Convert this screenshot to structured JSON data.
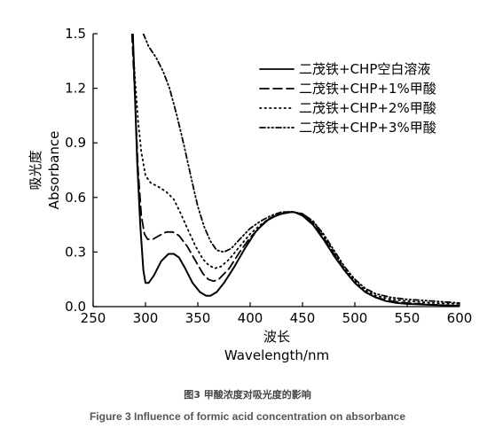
{
  "figure": {
    "caption_cn": "图3 甲酸浓度对吸光度的影响",
    "caption_en": "Figure 3 Influence of formic acid concentration on absorbance"
  },
  "chart_data": {
    "type": "line",
    "xlabel_cn": "波长",
    "xlabel": "Wavelength/nm",
    "ylabel_cn": "吸光度",
    "ylabel": "Absorbance",
    "xlim": [
      250,
      600
    ],
    "ylim": [
      0.0,
      1.5
    ],
    "xticks": [
      250,
      300,
      350,
      400,
      450,
      500,
      550,
      600
    ],
    "yticks": [
      0.0,
      0.3,
      0.6,
      0.9,
      1.2,
      1.5
    ],
    "ytick_labels": [
      "0.0",
      "0.3",
      "0.6",
      "0.9",
      "1.2",
      "1.5"
    ],
    "legend_position": "top-right",
    "series": [
      {
        "name": "二茂铁+CHP空白溶液",
        "style": "solid",
        "points": [
          [
            288,
            1.5
          ],
          [
            290,
            1.15
          ],
          [
            292,
            0.8
          ],
          [
            295,
            0.45
          ],
          [
            298,
            0.2
          ],
          [
            300,
            0.13
          ],
          [
            303,
            0.13
          ],
          [
            308,
            0.17
          ],
          [
            315,
            0.25
          ],
          [
            322,
            0.29
          ],
          [
            327,
            0.29
          ],
          [
            332,
            0.27
          ],
          [
            338,
            0.21
          ],
          [
            345,
            0.13
          ],
          [
            352,
            0.08
          ],
          [
            358,
            0.06
          ],
          [
            362,
            0.06
          ],
          [
            368,
            0.08
          ],
          [
            375,
            0.13
          ],
          [
            385,
            0.22
          ],
          [
            395,
            0.32
          ],
          [
            405,
            0.41
          ],
          [
            415,
            0.47
          ],
          [
            425,
            0.5
          ],
          [
            435,
            0.52
          ],
          [
            442,
            0.52
          ],
          [
            450,
            0.5
          ],
          [
            460,
            0.45
          ],
          [
            470,
            0.37
          ],
          [
            480,
            0.28
          ],
          [
            490,
            0.2
          ],
          [
            500,
            0.13
          ],
          [
            510,
            0.08
          ],
          [
            520,
            0.05
          ],
          [
            530,
            0.03
          ],
          [
            540,
            0.02
          ],
          [
            550,
            0.015
          ],
          [
            570,
            0.01
          ],
          [
            600,
            0.005
          ]
        ]
      },
      {
        "name": "二茂铁+CHP+1%甲酸",
        "style": "dashed",
        "points": [
          [
            287,
            1.5
          ],
          [
            290,
            1.15
          ],
          [
            293,
            0.75
          ],
          [
            296,
            0.5
          ],
          [
            299,
            0.4
          ],
          [
            302,
            0.37
          ],
          [
            307,
            0.37
          ],
          [
            313,
            0.39
          ],
          [
            320,
            0.41
          ],
          [
            326,
            0.41
          ],
          [
            332,
            0.39
          ],
          [
            340,
            0.33
          ],
          [
            348,
            0.25
          ],
          [
            355,
            0.18
          ],
          [
            360,
            0.15
          ],
          [
            365,
            0.14
          ],
          [
            370,
            0.15
          ],
          [
            380,
            0.21
          ],
          [
            390,
            0.3
          ],
          [
            400,
            0.38
          ],
          [
            410,
            0.44
          ],
          [
            420,
            0.49
          ],
          [
            430,
            0.51
          ],
          [
            440,
            0.52
          ],
          [
            450,
            0.51
          ],
          [
            460,
            0.46
          ],
          [
            470,
            0.38
          ],
          [
            480,
            0.29
          ],
          [
            490,
            0.2
          ],
          [
            500,
            0.13
          ],
          [
            510,
            0.08
          ],
          [
            520,
            0.05
          ],
          [
            535,
            0.03
          ],
          [
            550,
            0.02
          ],
          [
            575,
            0.01
          ],
          [
            600,
            0.005
          ]
        ]
      },
      {
        "name": "二茂铁+CHP+2%甲酸",
        "style": "dotted",
        "points": [
          [
            288,
            1.45
          ],
          [
            290,
            1.25
          ],
          [
            293,
            1.02
          ],
          [
            296,
            0.85
          ],
          [
            300,
            0.72
          ],
          [
            305,
            0.68
          ],
          [
            312,
            0.66
          ],
          [
            320,
            0.63
          ],
          [
            327,
            0.59
          ],
          [
            333,
            0.52
          ],
          [
            340,
            0.43
          ],
          [
            348,
            0.33
          ],
          [
            355,
            0.26
          ],
          [
            360,
            0.23
          ],
          [
            366,
            0.21
          ],
          [
            372,
            0.22
          ],
          [
            380,
            0.26
          ],
          [
            390,
            0.33
          ],
          [
            400,
            0.4
          ],
          [
            410,
            0.45
          ],
          [
            420,
            0.49
          ],
          [
            430,
            0.51
          ],
          [
            440,
            0.52
          ],
          [
            450,
            0.51
          ],
          [
            460,
            0.47
          ],
          [
            470,
            0.39
          ],
          [
            480,
            0.3
          ],
          [
            490,
            0.21
          ],
          [
            500,
            0.14
          ],
          [
            510,
            0.09
          ],
          [
            520,
            0.06
          ],
          [
            535,
            0.04
          ],
          [
            550,
            0.03
          ],
          [
            575,
            0.02
          ],
          [
            600,
            0.015
          ]
        ]
      },
      {
        "name": "二茂铁+CHP+3%甲酸",
        "style": "dashdotdot",
        "points": [
          [
            298,
            1.5
          ],
          [
            303,
            1.43
          ],
          [
            310,
            1.37
          ],
          [
            317,
            1.29
          ],
          [
            323,
            1.2
          ],
          [
            330,
            1.05
          ],
          [
            337,
            0.88
          ],
          [
            344,
            0.7
          ],
          [
            350,
            0.55
          ],
          [
            356,
            0.44
          ],
          [
            362,
            0.36
          ],
          [
            368,
            0.31
          ],
          [
            375,
            0.3
          ],
          [
            382,
            0.32
          ],
          [
            390,
            0.37
          ],
          [
            400,
            0.43
          ],
          [
            410,
            0.47
          ],
          [
            420,
            0.5
          ],
          [
            430,
            0.52
          ],
          [
            440,
            0.52
          ],
          [
            450,
            0.51
          ],
          [
            460,
            0.47
          ],
          [
            470,
            0.4
          ],
          [
            480,
            0.31
          ],
          [
            490,
            0.22
          ],
          [
            500,
            0.15
          ],
          [
            510,
            0.1
          ],
          [
            520,
            0.07
          ],
          [
            535,
            0.05
          ],
          [
            550,
            0.04
          ],
          [
            575,
            0.03
          ],
          [
            600,
            0.02
          ]
        ]
      }
    ]
  }
}
